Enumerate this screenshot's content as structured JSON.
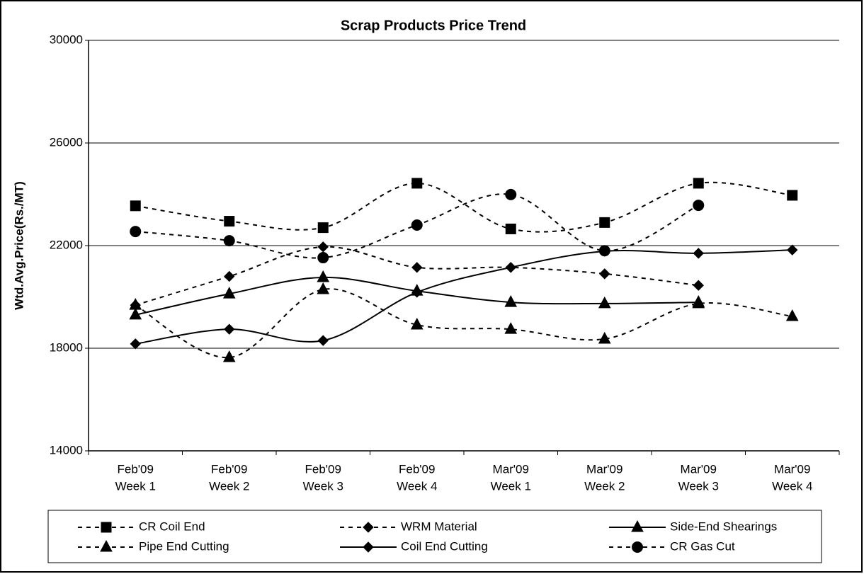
{
  "chart_data": {
    "type": "line",
    "title": "Scrap Products Price Trend",
    "y_label": "Wtd.Avg.Price(Rs./MT)",
    "categories": [
      [
        "Feb'09",
        "Week 1"
      ],
      [
        "Feb'09",
        "Week 2"
      ],
      [
        "Feb'09",
        "Week 3"
      ],
      [
        "Feb'09",
        "Week 4"
      ],
      [
        "Mar'09",
        "Week 1"
      ],
      [
        "Mar'09",
        "Week 2"
      ],
      [
        "Mar'09",
        "Week 3"
      ],
      [
        "Mar'09",
        "Week 4"
      ]
    ],
    "ylim": [
      14000,
      30000
    ],
    "yticks": [
      14000,
      18000,
      22000,
      26000,
      30000
    ],
    "grid": true,
    "smooth": true,
    "series": [
      {
        "name": "CR Coil End",
        "color": "#000000",
        "dash": "dashed",
        "marker": "square",
        "values": [
          23550,
          22950,
          22700,
          24430,
          22650,
          22900,
          24430,
          23960
        ]
      },
      {
        "name": "WRM Material",
        "color": "#000000",
        "dash": "dashed",
        "marker": "diamond",
        "values": [
          19680,
          20800,
          21950,
          21150,
          21150,
          20900,
          20450,
          null
        ]
      },
      {
        "name": "Side-End Shearings",
        "color": "#000000",
        "dash": "solid",
        "marker": "triangle",
        "values": [
          19300,
          20120,
          20760,
          20230,
          19790,
          19740,
          19790,
          null
        ]
      },
      {
        "name": "Pipe End Cutting",
        "color": "#000000",
        "dash": "dashed",
        "marker": "triangle",
        "values": [
          19680,
          17640,
          20290,
          18910,
          18740,
          18360,
          19740,
          19240
        ]
      },
      {
        "name": "Coil End Cutting",
        "color": "#000000",
        "dash": "solid",
        "marker": "diamond",
        "values": [
          18170,
          18740,
          18300,
          20180,
          21150,
          21780,
          21700,
          21830
        ]
      },
      {
        "name": "CR Gas Cut",
        "color": "#000000",
        "dash": "dashed",
        "marker": "circle",
        "values": [
          22550,
          22190,
          21530,
          22800,
          23990,
          21800,
          23570,
          null
        ]
      }
    ]
  }
}
